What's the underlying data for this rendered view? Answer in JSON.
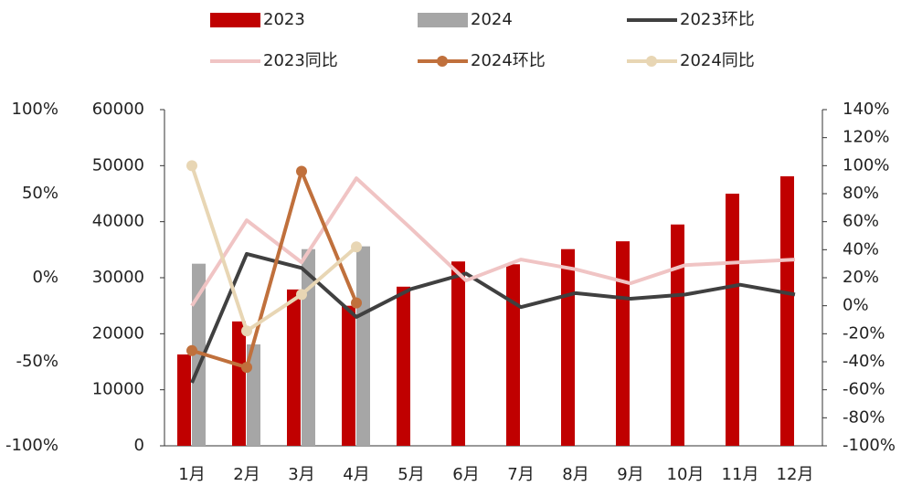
{
  "chart_data": {
    "type": "bar",
    "categories": [
      "1月",
      "2月",
      "3月",
      "4月",
      "5月",
      "6月",
      "7月",
      "8月",
      "9月",
      "10月",
      "11月",
      "12月"
    ],
    "series": [
      {
        "name": "2023",
        "type": "bar",
        "color": "#c00000",
        "values": [
          16300,
          22200,
          27900,
          25000,
          28400,
          32900,
          32400,
          35100,
          36500,
          39500,
          45000,
          48100
        ]
      },
      {
        "name": "2024",
        "type": "bar",
        "color": "#a6a6a6",
        "values": [
          32500,
          18100,
          35100,
          35600,
          null,
          null,
          null,
          null,
          null,
          null,
          null,
          null
        ]
      },
      {
        "name": "2023环比",
        "type": "line",
        "axis": "y2",
        "color": "#404040",
        "values": [
          -55,
          37,
          27,
          -8,
          12,
          23,
          -1,
          9,
          5,
          8,
          15,
          8
        ]
      },
      {
        "name": "2023同比",
        "type": "line",
        "axis": "y2",
        "color": "#f0c4c4",
        "values": [
          0,
          61,
          31,
          91,
          55,
          18,
          33,
          26,
          16,
          29,
          31,
          33
        ]
      },
      {
        "name": "2024环比",
        "type": "line",
        "axis": "y2",
        "color": "#c0703c",
        "markers": true,
        "values": [
          -32,
          -44,
          96,
          2,
          null,
          null,
          null,
          null,
          null,
          null,
          null,
          null
        ]
      },
      {
        "name": "2024同比",
        "type": "line",
        "axis": "y2",
        "color": "#e8d6b4",
        "markers": true,
        "values": [
          100,
          -18,
          8,
          42,
          null,
          null,
          null,
          null,
          null,
          null,
          null,
          null
        ]
      }
    ],
    "ylim": [
      0,
      60000
    ],
    "yticks": [
      0,
      10000,
      20000,
      30000,
      40000,
      50000,
      60000
    ],
    "y2lim": [
      -100,
      140
    ],
    "y2ticks": [
      {
        "value": -100,
        "label": "-100%"
      },
      {
        "value": -80,
        "label": "-80%"
      },
      {
        "value": -60,
        "label": "-60%"
      },
      {
        "value": -40,
        "label": "-40%"
      },
      {
        "value": -20,
        "label": "-20%"
      },
      {
        "value": 0,
        "label": "0%"
      },
      {
        "value": 20,
        "label": "20%"
      },
      {
        "value": 40,
        "label": "40%"
      },
      {
        "value": 60,
        "label": "60%"
      },
      {
        "value": 80,
        "label": "80%"
      },
      {
        "value": 100,
        "label": "100%"
      },
      {
        "value": 120,
        "label": "120%"
      },
      {
        "value": 140,
        "label": "140%"
      }
    ],
    "y3lim": [
      -100,
      100
    ],
    "y3ticks": [
      {
        "value": -100,
        "label": "-100%"
      },
      {
        "value": -50,
        "label": "-50%"
      },
      {
        "value": 0,
        "label": "0%"
      },
      {
        "value": 50,
        "label": "50%"
      },
      {
        "value": 100,
        "label": "100%"
      }
    ]
  }
}
